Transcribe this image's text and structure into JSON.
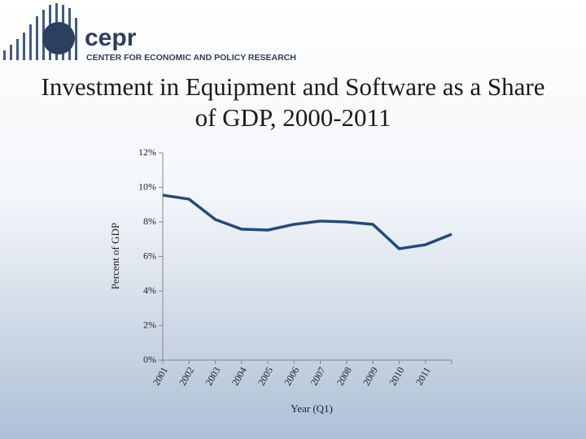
{
  "logo": {
    "name": "cepr",
    "tagline": "CENTER FOR ECONOMIC AND POLICY RESEARCH"
  },
  "chart_data": {
    "type": "line",
    "title": "Investment in Equipment and Software as a Share of GDP, 2000-2011",
    "y_label": "Percent of GDP",
    "x_label": "Year (Q1)",
    "categories": [
      "2001",
      "2002",
      "2003",
      "2004",
      "2005",
      "2006",
      "2007",
      "2008",
      "2009",
      "2010",
      "2011",
      null
    ],
    "values": [
      9.55,
      9.32,
      8.14,
      7.58,
      7.53,
      7.86,
      8.05,
      8.0,
      7.86,
      6.45,
      6.68,
      7.29
    ],
    "color": "#24497c",
    "ylim": [
      0,
      12
    ],
    "yticks": [
      {
        "value": 0,
        "label": "0%"
      },
      {
        "value": 2,
        "label": "2%"
      },
      {
        "value": 4,
        "label": "4%"
      },
      {
        "value": 6,
        "label": "6%"
      },
      {
        "value": 8,
        "label": "8%"
      },
      {
        "value": 10,
        "label": "10%"
      },
      {
        "value": 12,
        "label": "12%"
      }
    ],
    "grid": false
  }
}
